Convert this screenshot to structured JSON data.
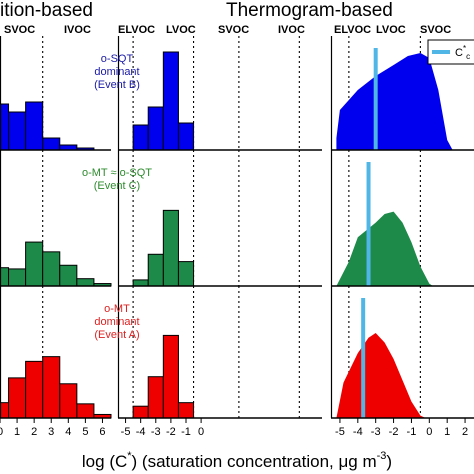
{
  "header": {
    "composition_title": "ition-based",
    "thermogram_title": "Thermogram-based",
    "regimes_left": {
      "svoc": "SVOC",
      "ivoc": "IVOC"
    },
    "regimes_right": {
      "elvoc": "ELVOC",
      "lvoc": "LVOC",
      "svoc": "SVOC",
      "ivoc": "IVOC"
    },
    "regimes_thermo": {
      "elvoc": "ELVOC",
      "lvoc": "LVOC",
      "svoc": "SVOC"
    }
  },
  "legend": {
    "label": "C",
    "sup": "*",
    "suffix": "c",
    "color": "#4fb6e6"
  },
  "x_axis": {
    "label_prefix": "log (",
    "label_c": "C",
    "label_sup": "*",
    "label_rest": ") (saturation concentration, μg m",
    "label_exp": "-3",
    "label_end": ")"
  },
  "chart_data": {
    "type": "bar",
    "rows": [
      {
        "event_lines": [
          "o-SQT",
          "dominant",
          "(Event B)"
        ],
        "color": "#0000ee",
        "label_color": "#1a1aa6",
        "thermo_marker": -3.0
      },
      {
        "event_lines": [
          "o-MT ≈ o-SQT",
          "(Event C)"
        ],
        "color": "#1e8a4a",
        "label_color": "#2e8b2e",
        "thermo_marker": -3.4
      },
      {
        "event_lines": [
          "o-MT",
          "dominant",
          "(Event A)"
        ],
        "color": "#ee0000",
        "label_color": "#dd2222",
        "thermo_marker": -3.7
      }
    ],
    "panels": [
      {
        "name": "composition-low",
        "ticks": [
          0,
          1,
          2,
          3,
          4,
          5,
          6
        ],
        "xlim": [
          0,
          6.5
        ],
        "series": [
          {
            "x": [
              0,
              1,
              2,
              3,
              4,
              5,
              6
            ],
            "values": [
              0.46,
              0.38,
              0.48,
              0.12,
              0.05,
              0.02,
              0.0
            ]
          },
          {
            "x": [
              0,
              1,
              2,
              3,
              4,
              5,
              6
            ],
            "values": [
              0.15,
              0.14,
              0.36,
              0.28,
              0.17,
              0.06,
              0.02
            ]
          },
          {
            "x": [
              0,
              1,
              2,
              3,
              4,
              5,
              6
            ],
            "values": [
              0.13,
              0.34,
              0.48,
              0.52,
              0.29,
              0.12,
              0.03
            ]
          }
        ]
      },
      {
        "name": "composition-high",
        "ticks": [
          -5,
          -4,
          -3,
          -2,
          -1,
          0
        ],
        "xlim": [
          -5.5,
          0.5
        ],
        "series": [
          {
            "x": [
              -4,
              -3,
              -2,
              -1
            ],
            "values": [
              0.25,
              0.43,
              0.98,
              0.27
            ]
          },
          {
            "x": [
              -4,
              -3,
              -2,
              -1
            ],
            "values": [
              0.05,
              0.26,
              0.62,
              0.2
            ]
          },
          {
            "x": [
              -4,
              -3,
              -2,
              -1
            ],
            "values": [
              0.1,
              0.35,
              0.7,
              0.13
            ]
          }
        ]
      },
      {
        "name": "thermogram",
        "ticks": [
          -5,
          -4,
          -3,
          -2,
          -1,
          0,
          1,
          2
        ],
        "xlim": [
          -5.5,
          2.5
        ],
        "series": [
          {
            "x": [
              -5.2,
              -5.0,
              -4.0,
              -3.0,
              -2.0,
              -1.2,
              -0.5,
              0.0,
              0.5,
              1.0,
              1.3
            ],
            "values": [
              0.12,
              0.4,
              0.6,
              0.74,
              0.85,
              0.94,
              0.97,
              0.92,
              0.6,
              0.1,
              0.0
            ]
          },
          {
            "x": [
              -5.2,
              -4.5,
              -4.0,
              -3.0,
              -2.5,
              -2.0,
              -1.5,
              -1.0,
              -0.5,
              0.0,
              0.2
            ],
            "values": [
              0.0,
              0.2,
              0.4,
              0.52,
              0.59,
              0.61,
              0.52,
              0.36,
              0.16,
              0.02,
              0.0
            ]
          },
          {
            "x": [
              -5.2,
              -4.8,
              -4.0,
              -3.4,
              -3.0,
              -2.5,
              -2.0,
              -1.5,
              -1.0,
              -0.5,
              -0.2
            ],
            "values": [
              0.0,
              0.3,
              0.55,
              0.68,
              0.72,
              0.64,
              0.5,
              0.32,
              0.14,
              0.02,
              0.0
            ]
          }
        ]
      }
    ]
  }
}
